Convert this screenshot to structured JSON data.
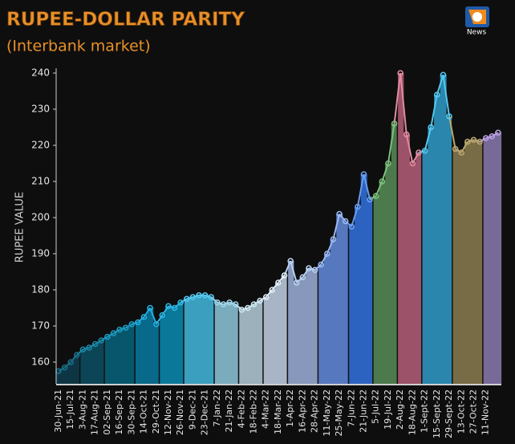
{
  "logo": "News",
  "chart_data": {
    "type": "area_line",
    "title": "RUPEE-DOLLAR PARITY",
    "subtitle": "(Interbank market)",
    "y_label": "RUPEE VALUE",
    "ylim": [
      154,
      240
    ],
    "yticks": [
      160,
      170,
      180,
      190,
      200,
      210,
      220,
      230,
      240
    ],
    "categories": [
      "30-Jun-21",
      null,
      "15-Jul-21",
      null,
      "3-Aug-21",
      null,
      "17-Aug-21",
      null,
      "02-Sep-21",
      null,
      "16-Sep-21",
      null,
      "30-Sep-21",
      null,
      "14-Oct-21",
      null,
      "29-Oct-21",
      null,
      "12-Nov-21",
      null,
      "26-Nov-21",
      null,
      "9-Dec-21",
      null,
      "23-Dec-21",
      null,
      "7-Jan-22",
      null,
      "21-Jan-22",
      null,
      "4-Feb-22",
      null,
      "18-Feb-22",
      null,
      "4-Mar-22",
      null,
      "18-Mar-22",
      null,
      "1-Apr-22",
      null,
      "16-Apr-22",
      null,
      "28-Apr-22",
      null,
      "11-May-22",
      null,
      "25-May-22",
      null,
      "7-Jun-22",
      null,
      "21-Jun-22",
      null,
      "5-Jul-22",
      null,
      "19-Jul-22",
      null,
      "2-Aug-22",
      null,
      "18-Aug-22",
      null,
      "1-Sept-22",
      null,
      "15-Sept-22",
      null,
      "29-Sept-22",
      null,
      "13-Oct-22",
      null,
      "27-Oct-22",
      null,
      "11-Nov-22",
      null,
      null
    ],
    "values": [
      157.5,
      158.5,
      160,
      162,
      163.5,
      164,
      165,
      166,
      167,
      168,
      169,
      169.5,
      170.5,
      171,
      172.5,
      175,
      170.5,
      173,
      175.5,
      175,
      176.5,
      177.5,
      178,
      178.5,
      178.5,
      178,
      176.5,
      176,
      176.5,
      176,
      174.5,
      175,
      176,
      177,
      178,
      180,
      182,
      184,
      188,
      182,
      183.5,
      186,
      185.5,
      187,
      190,
      194,
      201,
      199,
      197.5,
      203,
      212,
      205,
      206,
      210,
      215,
      226,
      240,
      223,
      215,
      218,
      218.5,
      225,
      234,
      239.5,
      228,
      219,
      218,
      221,
      221.5,
      221,
      222,
      222.5,
      223.5
    ],
    "colors": [
      "#0d3544",
      "#0d3544",
      "#0d3544",
      "#0d3544",
      "#0b4556",
      "#0b4556",
      "#0b4556",
      "#0b4556",
      "#07566c",
      "#07566c",
      "#07566c",
      "#07566c",
      "#07566c",
      "#08698a",
      "#08698a",
      "#08698a",
      "#08698a",
      "#0a7898",
      "#0a7898",
      "#0a7898",
      "#0a7898",
      "#3b9fbf",
      "#3b9fbf",
      "#3b9fbf",
      "#3b9fbf",
      "#3b9fbf",
      "#7aacbd",
      "#7aacbd",
      "#7aacbd",
      "#7aacbd",
      "#9cb1bc",
      "#9cb1bc",
      "#9cb1bc",
      "#9cb1bc",
      "#a9b5c7",
      "#a9b5c7",
      "#a9b5c7",
      "#a9b5c7",
      "#8898bd",
      "#8898bd",
      "#8898bd",
      "#8898bd",
      "#8898bd",
      "#5678be",
      "#5678be",
      "#5678be",
      "#5678be",
      "#5678be",
      "#2c62c0",
      "#2c62c0",
      "#2c62c0",
      "#2c62c0",
      "#4d7a4d",
      "#4d7a4d",
      "#4d7a4d",
      "#4d7a4d",
      "#9c5268",
      "#9c5268",
      "#9c5268",
      "#9c5268",
      "#2a86ac",
      "#2a86ac",
      "#2a86ac",
      "#2a86ac",
      "#2a86ac",
      "#786c46",
      "#786c46",
      "#786c46",
      "#786c46",
      "#786c46",
      "#786a98",
      "#786a98",
      "#786a98"
    ],
    "line_colors": [
      "#1a6e8a",
      "#1a6e8a",
      "#1a6e8a",
      "#1a6e8a",
      "#1b88a8",
      "#1b88a8",
      "#1b88a8",
      "#1b88a8",
      "#1c9ac0",
      "#1c9ac0",
      "#1c9ac0",
      "#1c9ac0",
      "#1c9ac0",
      "#22aee0",
      "#22aee0",
      "#22aee0",
      "#22aee0",
      "#2cb8e6",
      "#2cb8e6",
      "#2cb8e6",
      "#2cb8e6",
      "#55c8f0",
      "#55c8f0",
      "#55c8f0",
      "#55c8f0",
      "#55c8f0",
      "#9fd6ea",
      "#9fd6ea",
      "#9fd6ea",
      "#9fd6ea",
      "#cfe8f2",
      "#cfe8f2",
      "#cfe8f2",
      "#cfe8f2",
      "#e0eef8",
      "#e0eef8",
      "#e0eef8",
      "#e0eef8",
      "#b8d0f2",
      "#b8d0f2",
      "#b8d0f2",
      "#b8d0f2",
      "#b8d0f2",
      "#9bb8f0",
      "#9bb8f0",
      "#9bb8f0",
      "#9bb8f0",
      "#9bb8f0",
      "#6a9ef0",
      "#6a9ef0",
      "#6a9ef0",
      "#6a9ef0",
      "#7cc07c",
      "#7cc07c",
      "#7cc07c",
      "#7cc07c",
      "#e08ca0",
      "#e08ca0",
      "#e08ca0",
      "#e08ca0",
      "#56c8f0",
      "#56c8f0",
      "#56c8f0",
      "#56c8f0",
      "#56c8f0",
      "#bca870",
      "#bca870",
      "#bca870",
      "#bca870",
      "#bca870",
      "#b8a0e0",
      "#b8a0e0",
      "#b8a0e0"
    ]
  }
}
